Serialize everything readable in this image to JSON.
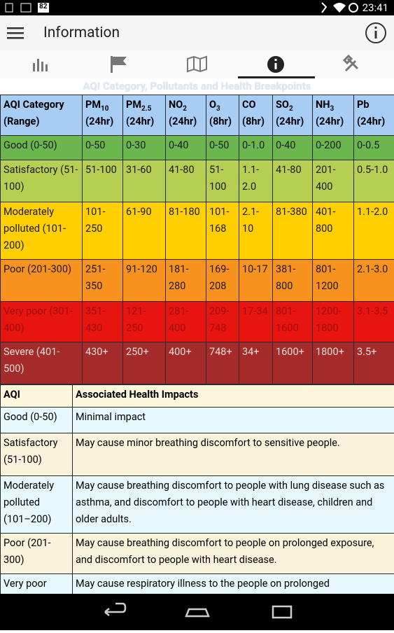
{
  "status_bar": {
    "battery": "82",
    "time": "23:41"
  },
  "app_bar": {
    "title": "Information"
  },
  "section_title": "AQI Category, Pollutants and Health Breakpoints",
  "breakpoints_table": {
    "header": [
      {
        "name": "AQI Category (Range)"
      },
      {
        "name": "PM",
        "sub": "10",
        "period": "(24hr)"
      },
      {
        "name": "PM",
        "sub": "2.5",
        "period": "(24hr)"
      },
      {
        "name": "NO",
        "sub": "2",
        "period": "(24hr)"
      },
      {
        "name": "O",
        "sub": "3",
        "period": "(8hr)"
      },
      {
        "name": "CO",
        "period": "(8hr)"
      },
      {
        "name": "SO",
        "sub": "2",
        "period": "(24hr)"
      },
      {
        "name": "NH",
        "sub": "3",
        "period": "(24hr)"
      },
      {
        "name": "Pb",
        "period": "(24hr)"
      }
    ],
    "rows": [
      {
        "color": "#6cb64e",
        "text_color": "#1a1a1a",
        "cells": [
          "Good (0-50)",
          "0-50",
          "0-30",
          "0-40",
          "0-50",
          "0-1.0",
          "0-40",
          "0-200",
          "0-0.5"
        ]
      },
      {
        "color": "#b4cf52",
        "text_color": "#1a1a1a",
        "cells": [
          "Satisfactory (51-100)",
          "51-100",
          "31-60",
          "41-80",
          "51-100",
          "1.1-2.0",
          "41-80",
          "201-400",
          "0.5-1.0"
        ]
      },
      {
        "color": "#ffcf00",
        "text_color": "#1a1a1a",
        "cells": [
          "Moderately polluted (101-200)",
          "101-250",
          "61-90",
          "81-180",
          "101-168",
          "2.1-10",
          "81-380",
          "401-800",
          "1.1-2.0"
        ]
      },
      {
        "color": "#f7921e",
        "text_color": "#1a1a1a",
        "cells": [
          "Poor (201-300)",
          "251-350",
          "91-120",
          "181-280",
          "169-208",
          "10-17",
          "381-800",
          "801-1200",
          "2.1-3.0"
        ]
      },
      {
        "color": "#e8140f",
        "text_color": "#9a1010",
        "cells": [
          "Very poor (301-400)",
          "351-430",
          "121-250",
          "281-400",
          "209-748",
          "17-34",
          "801-1600",
          "1200-1800",
          "3.1-3.5"
        ]
      },
      {
        "color": "#a52a2a",
        "text_color": "#e8dede",
        "cells": [
          "Severe (401-500)",
          "430+",
          "250+",
          "400+",
          "748+",
          "34+",
          "1600+",
          "1800+",
          "3.5+"
        ]
      }
    ]
  },
  "health_table": {
    "header": [
      "AQI",
      "Associated Health Impacts"
    ],
    "rows": [
      [
        "Good (0-50)",
        "Minimal impact"
      ],
      [
        "Satisfactory (51-100)",
        "May cause minor breathing discomfort to sensitive people."
      ],
      [
        "Moderately polluted (101–200)",
        "May cause breathing discomfort to people with lung disease such as asthma, and discomfort to people with heart disease, children and older adults."
      ],
      [
        "Poor (201-300)",
        "May cause breathing discomfort to people on prolonged exposure, and discomfort to people with heart disease."
      ],
      [
        "Very poor",
        "May cause respiratory illness to the people on prolonged"
      ]
    ]
  }
}
